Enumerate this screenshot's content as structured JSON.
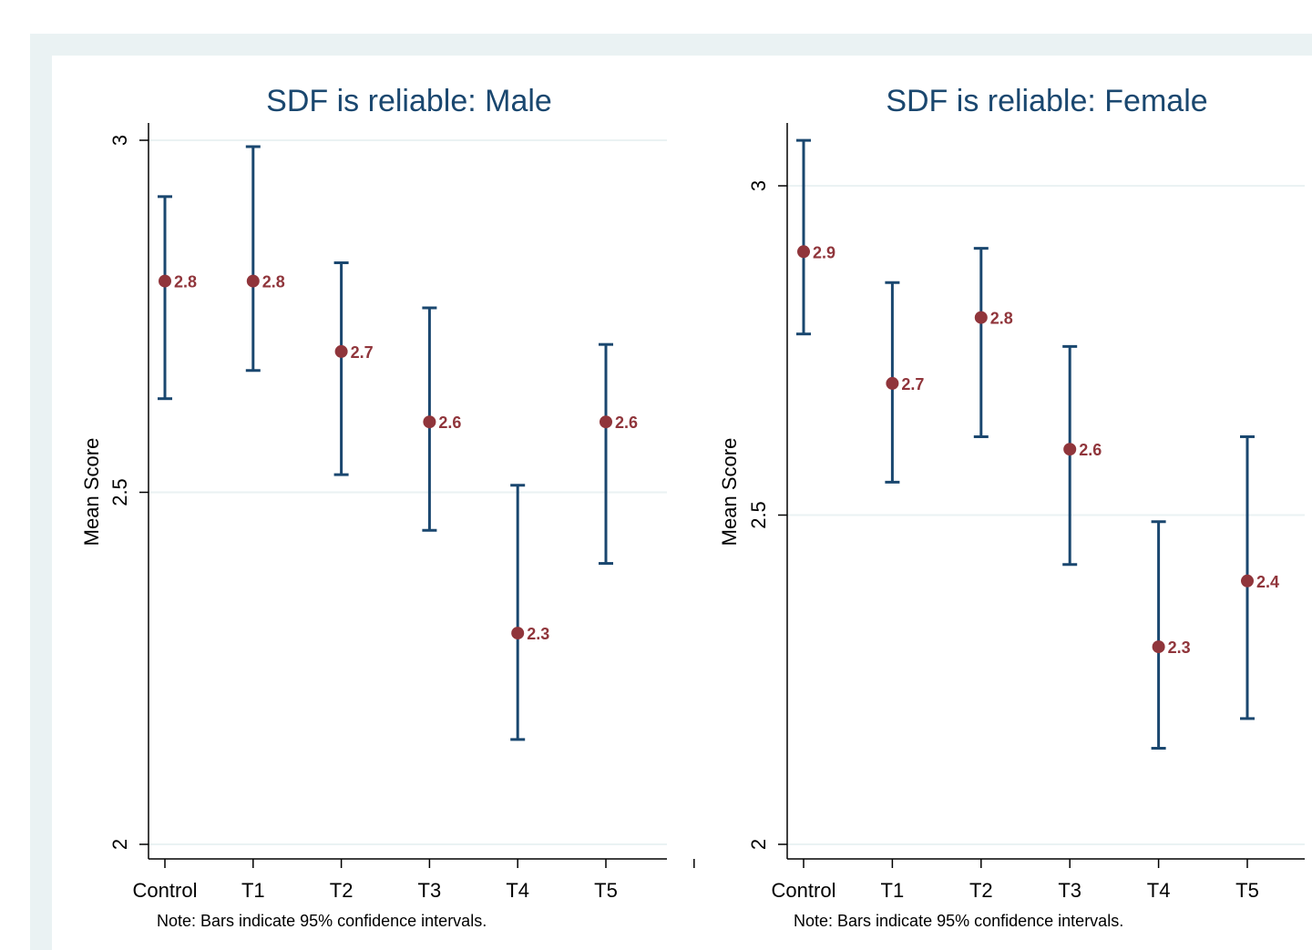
{
  "colors": {
    "background_outer": "#eaf2f3",
    "ci_bar": "#1a476f",
    "marker": "#90353b",
    "gridline": "#eaf2f3",
    "title": "#1a476f"
  },
  "chart_data": [
    {
      "type": "scatter",
      "title": "SDF is reliable: Male",
      "xlabel": "",
      "ylabel": "Mean Score",
      "note": "Note: Bars indicate 95% confidence intervals.",
      "categories": [
        "Control",
        "T1",
        "T2",
        "T3",
        "T4",
        "T5"
      ],
      "yticks": [
        "2",
        "2.5",
        "3"
      ],
      "ylim": [
        2.0,
        3.0
      ],
      "grid": true,
      "series": [
        {
          "values": [
            2.8,
            2.8,
            2.7,
            2.6,
            2.3,
            2.6
          ],
          "labels": [
            "2.8",
            "2.8",
            "2.7",
            "2.6",
            "2.3",
            "2.6"
          ],
          "ci_low": [
            2.633,
            2.673,
            2.525,
            2.446,
            2.149,
            2.399
          ],
          "ci_high": [
            2.92,
            2.991,
            2.826,
            2.762,
            2.51,
            2.71
          ]
        }
      ]
    },
    {
      "type": "scatter",
      "title": "SDF is reliable: Female",
      "xlabel": "",
      "ylabel": "Mean Score",
      "note": "Note: Bars indicate 95% confidence intervals.",
      "categories": [
        "Control",
        "T1",
        "T2",
        "T3",
        "T4",
        "T5"
      ],
      "yticks": [
        "2",
        "2.5",
        "3"
      ],
      "ylim": [
        2.0,
        3.0
      ],
      "grid": true,
      "series": [
        {
          "values": [
            2.9,
            2.7,
            2.8,
            2.6,
            2.3,
            2.4
          ],
          "labels": [
            "2.9",
            "2.7",
            "2.8",
            "2.6",
            "2.3",
            "2.4"
          ],
          "ci_low": [
            2.775,
            2.55,
            2.619,
            2.425,
            2.146,
            2.191
          ],
          "ci_high": [
            3.069,
            2.853,
            2.905,
            2.756,
            2.49,
            2.619
          ]
        }
      ]
    }
  ]
}
